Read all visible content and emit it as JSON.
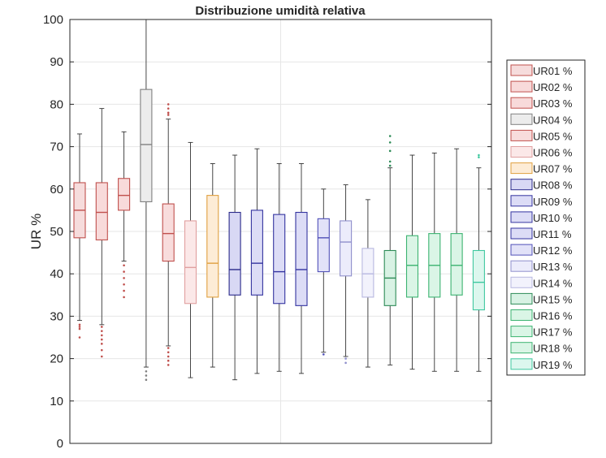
{
  "chart_data": {
    "type": "box",
    "title": "Distribuzione umidità relativa",
    "xlabel": "",
    "ylabel": "UR %",
    "ylim": [
      0,
      100
    ],
    "yticks": [
      "0",
      "10",
      "20",
      "30",
      "40",
      "50",
      "60",
      "70",
      "80",
      "90",
      "100"
    ],
    "grid": true,
    "legend_position": "right",
    "series": [
      {
        "name": "UR01 %",
        "color": "#c0504d",
        "fill": "#f6dcdc",
        "min": 29,
        "q1": 48.5,
        "median": 55,
        "q3": 61.5,
        "max": 73,
        "outliers": [
          28,
          27.5,
          27,
          25
        ]
      },
      {
        "name": "UR02 %",
        "color": "#c0504d",
        "fill": "#f8dada",
        "min": 28,
        "q1": 48,
        "median": 54.5,
        "q3": 61.5,
        "max": 79,
        "outliers": [
          27.5,
          26.5,
          25.5,
          24.5,
          23.5,
          22,
          20.5
        ]
      },
      {
        "name": "UR03 %",
        "color": "#c0504d",
        "fill": "#f8dada",
        "min": 43,
        "q1": 55,
        "median": 58.5,
        "q3": 62.5,
        "max": 73.5,
        "outliers": [
          42,
          40.5,
          39,
          37.5,
          36,
          34.5
        ]
      },
      {
        "name": "UR04 %",
        "color": "#808080",
        "fill": "#ececec",
        "min": 18,
        "q1": 57,
        "median": 70.5,
        "q3": 83.5,
        "max": 100,
        "outliers": [
          17,
          16,
          15
        ]
      },
      {
        "name": "UR05 %",
        "color": "#c0504d",
        "fill": "#f8dcdc",
        "min": 23,
        "q1": 43,
        "median": 49.5,
        "q3": 56.5,
        "max": 76.5,
        "outliers": [
          80,
          79,
          78,
          77.5,
          22.5,
          21.5,
          20.5,
          19.5,
          18.5
        ]
      },
      {
        "name": "UR06 %",
        "color": "#e0a0a0",
        "fill": "#fbe8e8",
        "min": 15.5,
        "q1": 33,
        "median": 41.5,
        "q3": 52.5,
        "max": 71,
        "outliers": []
      },
      {
        "name": "UR07 %",
        "color": "#e0a040",
        "fill": "#fdecd6",
        "min": 18,
        "q1": 34.5,
        "median": 42.5,
        "q3": 58.5,
        "max": 66,
        "outliers": []
      },
      {
        "name": "UR08 %",
        "color": "#2a2a8a",
        "fill": "#d8d8f4",
        "min": 15,
        "q1": 35,
        "median": 41,
        "q3": 54.5,
        "max": 68,
        "outliers": []
      },
      {
        "name": "UR09 %",
        "color": "#3434a0",
        "fill": "#dcdcf6",
        "min": 16.5,
        "q1": 35,
        "median": 42.5,
        "q3": 55,
        "max": 69.5,
        "outliers": []
      },
      {
        "name": "UR10 %",
        "color": "#3434a0",
        "fill": "#dcdcf6",
        "min": 17,
        "q1": 33,
        "median": 40.5,
        "q3": 54,
        "max": 66,
        "outliers": []
      },
      {
        "name": "UR11 %",
        "color": "#3434a0",
        "fill": "#dcdcf6",
        "min": 16.5,
        "q1": 32.5,
        "median": 41,
        "q3": 54.5,
        "max": 66,
        "outliers": []
      },
      {
        "name": "UR12 %",
        "color": "#5050b8",
        "fill": "#e2e2f8",
        "min": 21.5,
        "q1": 40.5,
        "median": 48.5,
        "q3": 53,
        "max": 60,
        "outliers": [
          21
        ]
      },
      {
        "name": "UR13 %",
        "color": "#9090cc",
        "fill": "#ececfb",
        "min": 20.5,
        "q1": 39.5,
        "median": 47.5,
        "q3": 52.5,
        "max": 61,
        "outliers": [
          20,
          19
        ]
      },
      {
        "name": "UR14 %",
        "color": "#b8b8e0",
        "fill": "#f2f2fc",
        "min": 18,
        "q1": 34.5,
        "median": 40,
        "q3": 46,
        "max": 57.5,
        "outliers": []
      },
      {
        "name": "UR15 %",
        "color": "#2e8b57",
        "fill": "#d8f2e4",
        "min": 18.5,
        "q1": 32.5,
        "median": 39,
        "q3": 45.5,
        "max": 65,
        "outliers": [
          72.5,
          71,
          69,
          66.5,
          65.5
        ]
      },
      {
        "name": "UR16 %",
        "color": "#3cb371",
        "fill": "#daf5e6",
        "min": 17.5,
        "q1": 34.5,
        "median": 42,
        "q3": 49,
        "max": 68,
        "outliers": []
      },
      {
        "name": "UR17 %",
        "color": "#3cb371",
        "fill": "#daf5e6",
        "min": 17,
        "q1": 34.5,
        "median": 42,
        "q3": 49.5,
        "max": 68.5,
        "outliers": []
      },
      {
        "name": "UR18 %",
        "color": "#3cb371",
        "fill": "#daf5e6",
        "min": 17,
        "q1": 35,
        "median": 42,
        "q3": 49.5,
        "max": 69.5,
        "outliers": []
      },
      {
        "name": "UR19 %",
        "color": "#40c8a0",
        "fill": "#dcf7ee",
        "min": 17,
        "q1": 31.5,
        "median": 38,
        "q3": 45.5,
        "max": 65,
        "outliers": [
          68,
          67.5
        ]
      }
    ]
  }
}
